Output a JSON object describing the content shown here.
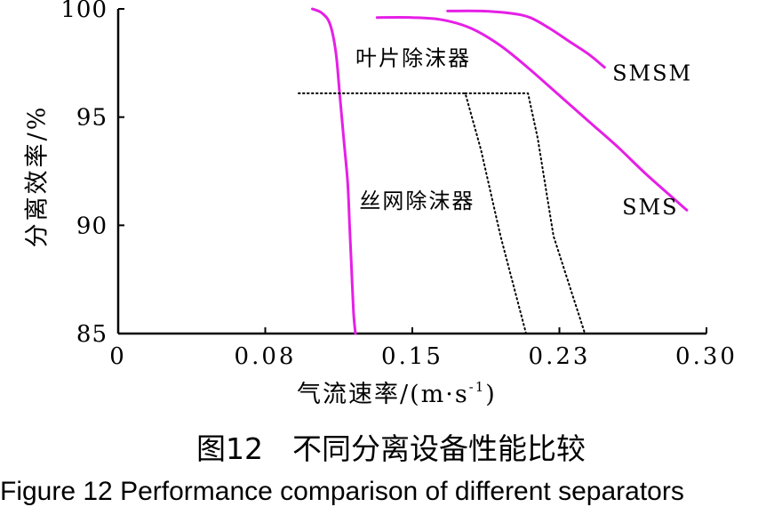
{
  "chart_data": {
    "type": "line",
    "xlabel": "气流速率/(m·s",
    "xlabel_sup": "-1",
    "xlabel_close": ")",
    "ylabel": "分离效率/%",
    "xlim": [
      0,
      0.3
    ],
    "ylim": [
      85,
      100
    ],
    "xticks": [
      {
        "value": 0,
        "label": "0"
      },
      {
        "value": 0.075,
        "label": "0.08"
      },
      {
        "value": 0.15,
        "label": "0.15"
      },
      {
        "value": 0.225,
        "label": "0.23"
      },
      {
        "value": 0.3,
        "label": "0.30"
      }
    ],
    "yticks": [
      {
        "value": 85,
        "label": "85"
      },
      {
        "value": 90,
        "label": "90"
      },
      {
        "value": 95,
        "label": "95"
      },
      {
        "value": 100,
        "label": "100"
      }
    ],
    "grid": false,
    "series": [
      {
        "name": "叶片除沫器",
        "style": "solid",
        "color": "#e61fe6",
        "label_at": [
          0.121,
          97.4
        ],
        "points": [
          [
            0.099,
            100
          ],
          [
            0.104,
            99.8
          ],
          [
            0.108,
            99.3
          ],
          [
            0.111,
            98.0
          ],
          [
            0.113,
            96.0
          ],
          [
            0.115,
            94.0
          ],
          [
            0.117,
            92.0
          ],
          [
            0.118,
            90.0
          ],
          [
            0.119,
            88.0
          ],
          [
            0.12,
            86.0
          ],
          [
            0.121,
            85.0
          ]
        ]
      },
      {
        "name": "SMSM",
        "style": "solid",
        "color": "#e61fe6",
        "label_at": [
          0.252,
          96.7
        ],
        "points": [
          [
            0.168,
            99.9
          ],
          [
            0.185,
            99.9
          ],
          [
            0.2,
            99.8
          ],
          [
            0.21,
            99.6
          ],
          [
            0.22,
            99.1
          ],
          [
            0.23,
            98.5
          ],
          [
            0.24,
            97.9
          ],
          [
            0.248,
            97.3
          ]
        ]
      },
      {
        "name": "SMS",
        "style": "solid",
        "color": "#e61fe6",
        "label_at": [
          0.257,
          90.5
        ],
        "points": [
          [
            0.132,
            99.6
          ],
          [
            0.15,
            99.6
          ],
          [
            0.165,
            99.5
          ],
          [
            0.18,
            99.1
          ],
          [
            0.195,
            98.3
          ],
          [
            0.21,
            97.2
          ],
          [
            0.225,
            96.0
          ],
          [
            0.24,
            94.8
          ],
          [
            0.255,
            93.6
          ],
          [
            0.27,
            92.3
          ],
          [
            0.29,
            90.7
          ]
        ]
      },
      {
        "name": "丝网除沫器",
        "style": "dotted",
        "color": "#000000",
        "label_at": [
          0.123,
          90.8
        ],
        "points": [
          [
            0.092,
            96.1
          ],
          [
            0.177,
            96.1
          ],
          [
            0.185,
            93.5
          ],
          [
            0.195,
            89.5
          ],
          [
            0.208,
            85.0
          ]
        ]
      },
      {
        "name": "",
        "style": "dotted",
        "color": "#000000",
        "points": [
          [
            0.177,
            96.1
          ],
          [
            0.209,
            96.1
          ],
          [
            0.214,
            94.0
          ],
          [
            0.222,
            89.5
          ],
          [
            0.238,
            85.0
          ]
        ]
      }
    ]
  },
  "caption": {
    "cn": "图12　不同分离设备性能比较",
    "en": "Figure 12    Performance comparison of different separators"
  }
}
